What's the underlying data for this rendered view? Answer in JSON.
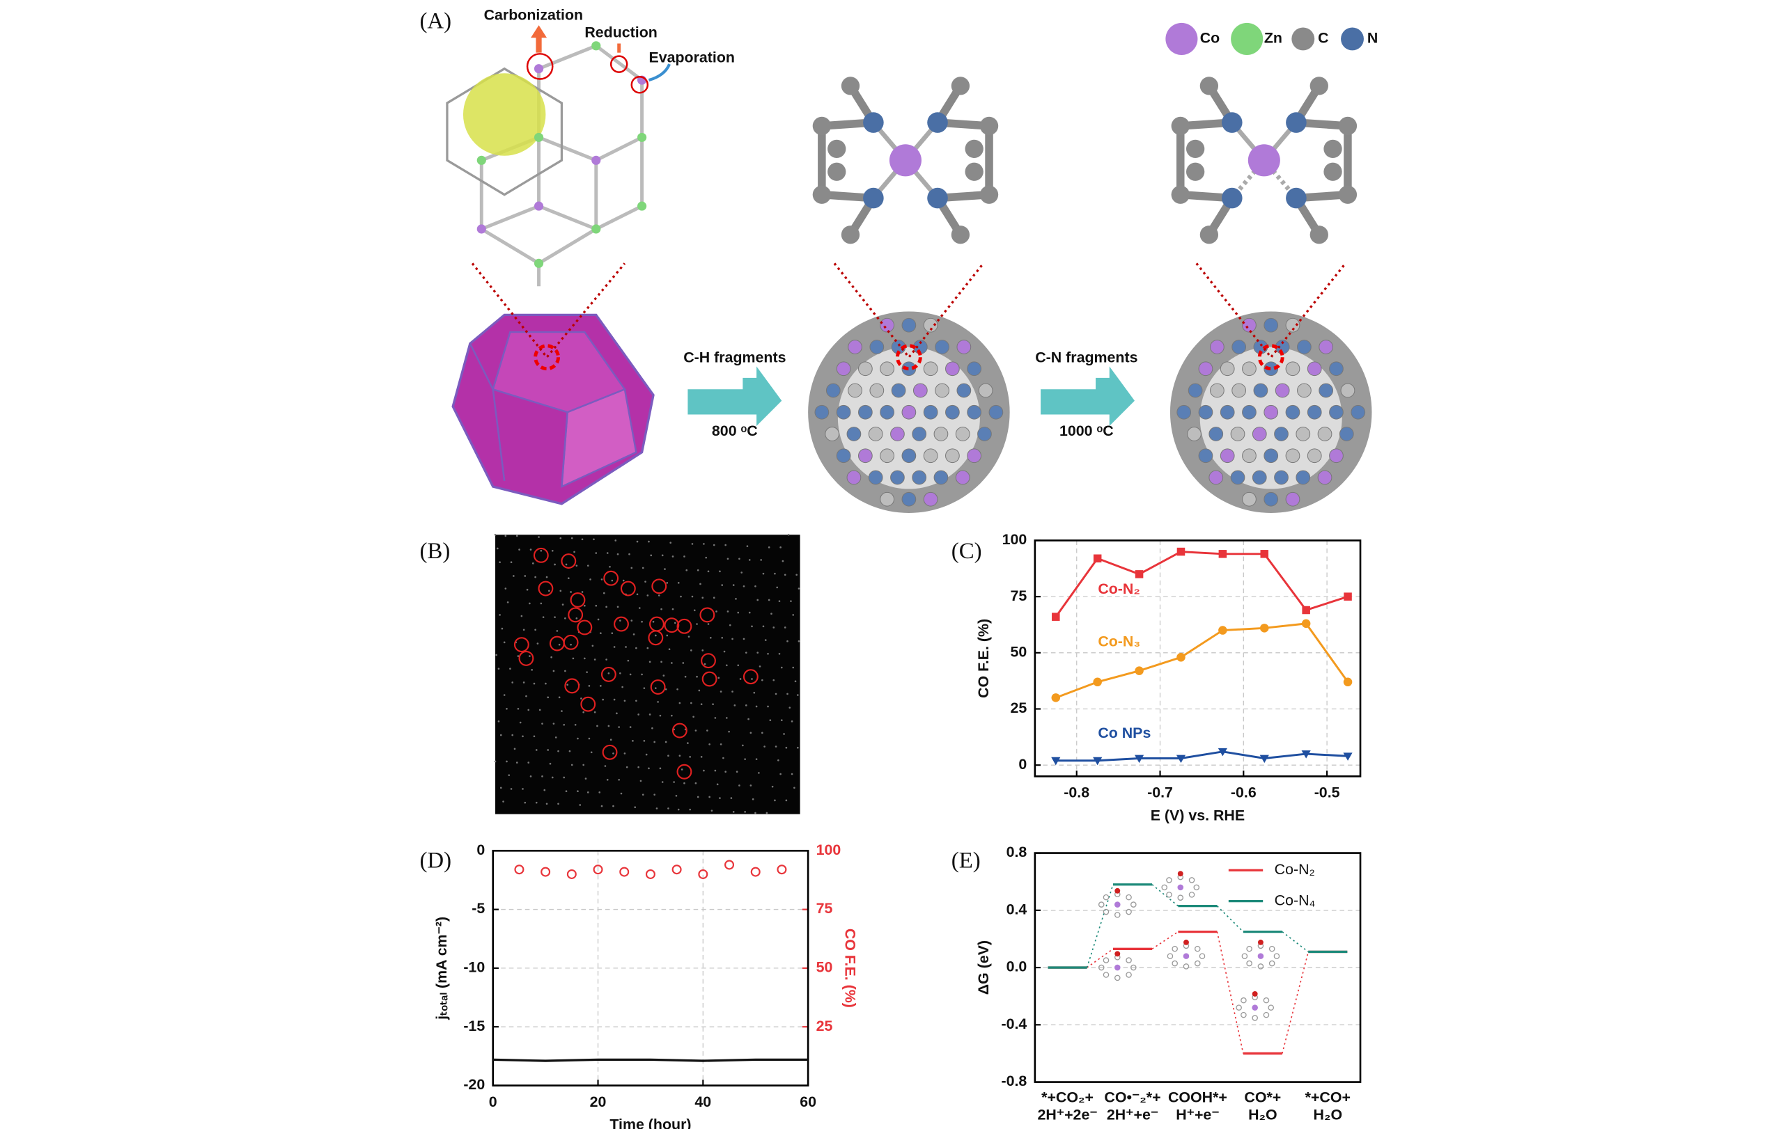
{
  "panel_labels": [
    "(A)",
    "(B)",
    "(C)",
    "(D)",
    "(E)"
  ],
  "schematic": {
    "process_labels": [
      "Carbonization",
      "Reduction",
      "Evaporation"
    ],
    "legend": [
      "Co",
      "Zn",
      "C",
      "N"
    ],
    "steps": [
      {
        "label": "C-H fragments",
        "temperature": "800 ᵒC"
      },
      {
        "label": "C-N fragments",
        "temperature": "1000 ᵒC"
      }
    ]
  },
  "chart_data": [
    {
      "type": "line",
      "xlabel": "E (V) vs. RHE",
      "ylabel": "CO F.E. (%)",
      "x": [
        -0.825,
        -0.775,
        -0.725,
        -0.675,
        -0.625,
        -0.575,
        -0.525,
        -0.475
      ],
      "series": [
        {
          "name": "Co-N₂",
          "color": "#e8343a",
          "marker": "square",
          "values": [
            66,
            92,
            85,
            95,
            94,
            94,
            69,
            75
          ]
        },
        {
          "name": "Co-N₃",
          "color": "#f39a1e",
          "marker": "circle",
          "values": [
            30,
            37,
            42,
            48,
            60,
            61,
            63,
            37
          ]
        },
        {
          "name": "Co NPs",
          "color": "#1f4fa0",
          "marker": "triangle",
          "values": [
            2,
            2,
            3,
            3,
            6,
            3,
            5,
            4
          ]
        }
      ],
      "xlim": [
        -0.85,
        -0.46
      ],
      "xticks": [
        -0.8,
        -0.7,
        -0.6,
        -0.5
      ],
      "ylim": [
        -5,
        100
      ],
      "yticks": [
        0,
        25,
        50,
        75,
        100
      ],
      "grid": true
    },
    {
      "type": "dual_axis",
      "xlabel": "Time (hour)",
      "ylabel": "jₜₒₜₐₗ (mA cm⁻²)",
      "y2label": "CO F.E. (%)",
      "xlim": [
        0,
        60
      ],
      "xticks": [
        0,
        20,
        40,
        60
      ],
      "ylim": [
        -20,
        0
      ],
      "yticks": [
        0,
        -5,
        -10,
        -15,
        -20
      ],
      "y2lim": [
        0,
        100
      ],
      "y2ticks": [
        25,
        50,
        75,
        100
      ],
      "grid": true,
      "series": [
        {
          "color": "#111111",
          "marker": "none",
          "x": [
            0,
            10,
            20,
            30,
            40,
            50,
            60
          ],
          "values": [
            -17.8,
            -17.9,
            -17.8,
            -17.8,
            -17.9,
            -17.8,
            -17.8
          ]
        },
        {
          "color": "#e8343a",
          "marker": "open-circle",
          "axis": "y2",
          "x": [
            5,
            10,
            15,
            20,
            25,
            30,
            35,
            40,
            45,
            50,
            55
          ],
          "values": [
            92,
            91,
            90,
            92,
            91,
            90,
            92,
            90,
            94,
            91,
            92
          ]
        }
      ]
    },
    {
      "type": "energy_profile",
      "ylabel": "ΔG (eV)",
      "categories": [
        "*+CO₂+\n2H⁺+2e⁻",
        "CO•⁻₂*+\n2H⁺+e⁻",
        "COOH*+\nH⁺+e⁻",
        "CO*+\nH₂O",
        "*+CO+\nH₂O"
      ],
      "ylim": [
        -0.8,
        0.8
      ],
      "yticks": [
        0.8,
        0.4,
        {
          "value": 0,
          "label": "0.0"
        },
        -0.4,
        -0.8
      ],
      "grid": true,
      "legend": "upper right",
      "series": [
        {
          "name": "Co-N₂",
          "color": "#e8343a",
          "values": [
            0,
            0.13,
            0.25,
            -0.6,
            0.11
          ]
        },
        {
          "name": "Co-N₄",
          "color": "#1d8a7a",
          "values": [
            0,
            0.58,
            0.43,
            0.25,
            0.11
          ]
        }
      ]
    }
  ]
}
